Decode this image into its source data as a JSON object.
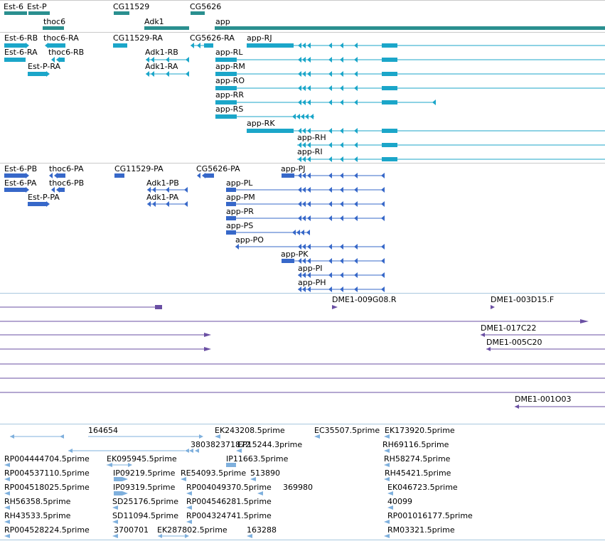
{
  "colors": {
    "gene": "#2a8f8f",
    "transcript": "#1ba6c9",
    "protein": "#3768c9",
    "clone": "#6a4fa3",
    "est": "#7fb0dd",
    "separator_light": "#c9c9c9",
    "separator_blue": "#a9c8de"
  },
  "tracks": {
    "genes": {
      "features": [
        {
          "label": "Est-6",
          "name": "est-6-gene"
        },
        {
          "label": "Est-P",
          "name": "est-p-gene"
        },
        {
          "label": "thoc6",
          "name": "thoc6-gene"
        },
        {
          "label": "CG11529",
          "name": "cg11529-gene"
        },
        {
          "label": "Adk1",
          "name": "adk1-gene"
        },
        {
          "label": "CG5626",
          "name": "cg5626-gene"
        },
        {
          "label": "app",
          "name": "app-gene"
        }
      ]
    },
    "transcripts": {
      "features": [
        "Est-6-RB",
        "thoc6-RA",
        "CG11529-RA",
        "CG5626-RA",
        "app-RJ",
        "Est-6-RA",
        "thoc6-RB",
        "Adk1-RB",
        "app-RL",
        "Est-P-RA",
        "Adk1-RA",
        "app-RM",
        "app-RO",
        "app-RR",
        "app-RS",
        "app-RK",
        "app-RH",
        "app-RI"
      ]
    },
    "proteins": {
      "features": [
        "Est-6-PB",
        "thoc6-PA",
        "CG11529-PA",
        "CG5626-PA",
        "app-PJ",
        "Est-6-PA",
        "thoc6-PB",
        "Adk1-PB",
        "app-PL",
        "Est-P-PA",
        "Adk1-PA",
        "app-PM",
        "app-PR",
        "app-PS",
        "app-PO",
        "app-PK",
        "app-PI",
        "app-PH"
      ]
    },
    "clones": {
      "features": [
        "DME1-009G08.R",
        "DME1-003D15.F",
        "DME1-017C22",
        "DME1-005C20",
        "DME1-001O03"
      ]
    },
    "ests": {
      "features": [
        "164654",
        "EK243208.5prime",
        "EC35507.5prime",
        "EK173920.5prime",
        "380382371872",
        "EP15244.3prime",
        "RH69116.5prime",
        "RP004444704.5prime",
        "EK095945.5prime",
        "IP11663.5prime",
        "RH58274.5prime",
        "RP004537110.5prime",
        "IP09219.5prime",
        "RE54093.5prime",
        "513890",
        "RH45421.5prime",
        "RP004518025.5prime",
        "IP09319.5prime",
        "RP004049370.5prime",
        "369980",
        "EK046723.5prime",
        "RH56358.5prime",
        "SD25176.5prime",
        "RP004546281.5prime",
        "40099",
        "RH43533.5prime",
        "SD11094.5prime",
        "RP004324741.5prime",
        "RP001016177.5prime",
        "RP004528224.5prime",
        "3700701",
        "EK287802.5prime",
        "163288",
        "RM03321.5prime"
      ]
    }
  }
}
